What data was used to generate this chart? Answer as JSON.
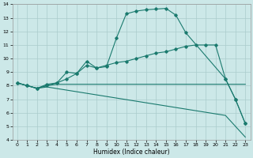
{
  "xlabel": "Humidex (Indice chaleur)",
  "ylabel": "",
  "xlim": [
    -0.5,
    23.5
  ],
  "ylim": [
    4,
    14
  ],
  "xticks": [
    0,
    1,
    2,
    3,
    4,
    5,
    6,
    7,
    8,
    9,
    10,
    11,
    12,
    13,
    14,
    15,
    16,
    17,
    18,
    19,
    20,
    21,
    22,
    23
  ],
  "yticks": [
    4,
    5,
    6,
    7,
    8,
    9,
    10,
    11,
    12,
    13,
    14
  ],
  "bg_color": "#cce8e8",
  "grid_color": "#aacccc",
  "line_color": "#1a7a6e",
  "line1_x": [
    0,
    1,
    2,
    3,
    4,
    5,
    6,
    7,
    8,
    9,
    10,
    11,
    12,
    13,
    14,
    15,
    16,
    17,
    21,
    22,
    23
  ],
  "line1_y": [
    8.2,
    8.0,
    7.8,
    8.1,
    8.2,
    9.0,
    8.9,
    9.8,
    9.3,
    9.4,
    11.5,
    13.3,
    13.5,
    13.6,
    13.65,
    13.7,
    13.2,
    11.9,
    8.5,
    7.0,
    5.2
  ],
  "line2_x": [
    0,
    1,
    2,
    3,
    4,
    5,
    6,
    7,
    8,
    9,
    10,
    11,
    12,
    13,
    14,
    15,
    16,
    17,
    18,
    19,
    20,
    21,
    22,
    23
  ],
  "line2_y": [
    8.2,
    8.0,
    7.8,
    8.0,
    8.2,
    8.5,
    8.9,
    9.5,
    9.3,
    9.5,
    9.7,
    9.8,
    10.0,
    10.2,
    10.4,
    10.5,
    10.7,
    10.9,
    11.0,
    11.0,
    11.0,
    8.5,
    7.0,
    5.2
  ],
  "line3_x": [
    0,
    1,
    2,
    3,
    4,
    5,
    21,
    22,
    23
  ],
  "line3_y": [
    8.2,
    8.0,
    7.8,
    8.0,
    8.1,
    8.1,
    8.1,
    8.1,
    8.1
  ],
  "line4_x": [
    0,
    1,
    2,
    3,
    21,
    22,
    23
  ],
  "line4_y": [
    8.2,
    8.0,
    7.8,
    7.9,
    5.8,
    5.0,
    4.2
  ]
}
